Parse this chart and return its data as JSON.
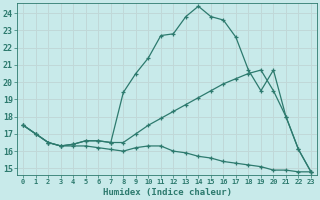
{
  "xlabel": "Humidex (Indice chaleur)",
  "bg_color": "#c8eaea",
  "grid_color": "#c0d8d8",
  "line_color": "#2d7a6e",
  "xlim": [
    -0.5,
    23.5
  ],
  "ylim": [
    14.6,
    24.6
  ],
  "xticks": [
    0,
    1,
    2,
    3,
    4,
    5,
    6,
    7,
    8,
    9,
    10,
    11,
    12,
    13,
    14,
    15,
    16,
    17,
    18,
    19,
    20,
    21,
    22,
    23
  ],
  "yticks": [
    15,
    16,
    17,
    18,
    19,
    20,
    21,
    22,
    23,
    24
  ],
  "line1_x": [
    0,
    1,
    2,
    3,
    4,
    5,
    6,
    7,
    8,
    9,
    10,
    11,
    12,
    13,
    14,
    15,
    16,
    17,
    18,
    19,
    20,
    21,
    22,
    23
  ],
  "line1_y": [
    17.5,
    17.0,
    16.5,
    16.3,
    16.4,
    16.6,
    16.6,
    16.5,
    19.4,
    20.5,
    21.4,
    22.7,
    22.8,
    23.8,
    24.4,
    23.8,
    23.6,
    22.6,
    20.7,
    19.5,
    20.7,
    18.0,
    16.1,
    14.8
  ],
  "line2_x": [
    0,
    1,
    2,
    3,
    4,
    5,
    6,
    7,
    8,
    9,
    10,
    11,
    12,
    13,
    14,
    15,
    16,
    17,
    18,
    19,
    20,
    21,
    22,
    23
  ],
  "line2_y": [
    17.5,
    17.0,
    16.5,
    16.3,
    16.4,
    16.6,
    16.6,
    16.5,
    16.5,
    17.0,
    17.5,
    17.9,
    18.3,
    18.7,
    19.1,
    19.5,
    19.9,
    20.2,
    20.5,
    20.7,
    19.5,
    18.0,
    16.1,
    14.8
  ],
  "line3_x": [
    0,
    1,
    2,
    3,
    4,
    5,
    6,
    7,
    8,
    9,
    10,
    11,
    12,
    13,
    14,
    15,
    16,
    17,
    18,
    19,
    20,
    21,
    22,
    23
  ],
  "line3_y": [
    17.5,
    17.0,
    16.5,
    16.3,
    16.3,
    16.3,
    16.2,
    16.1,
    16.0,
    16.2,
    16.3,
    16.3,
    16.0,
    15.9,
    15.7,
    15.6,
    15.4,
    15.3,
    15.2,
    15.1,
    14.9,
    14.9,
    14.8,
    14.8
  ]
}
